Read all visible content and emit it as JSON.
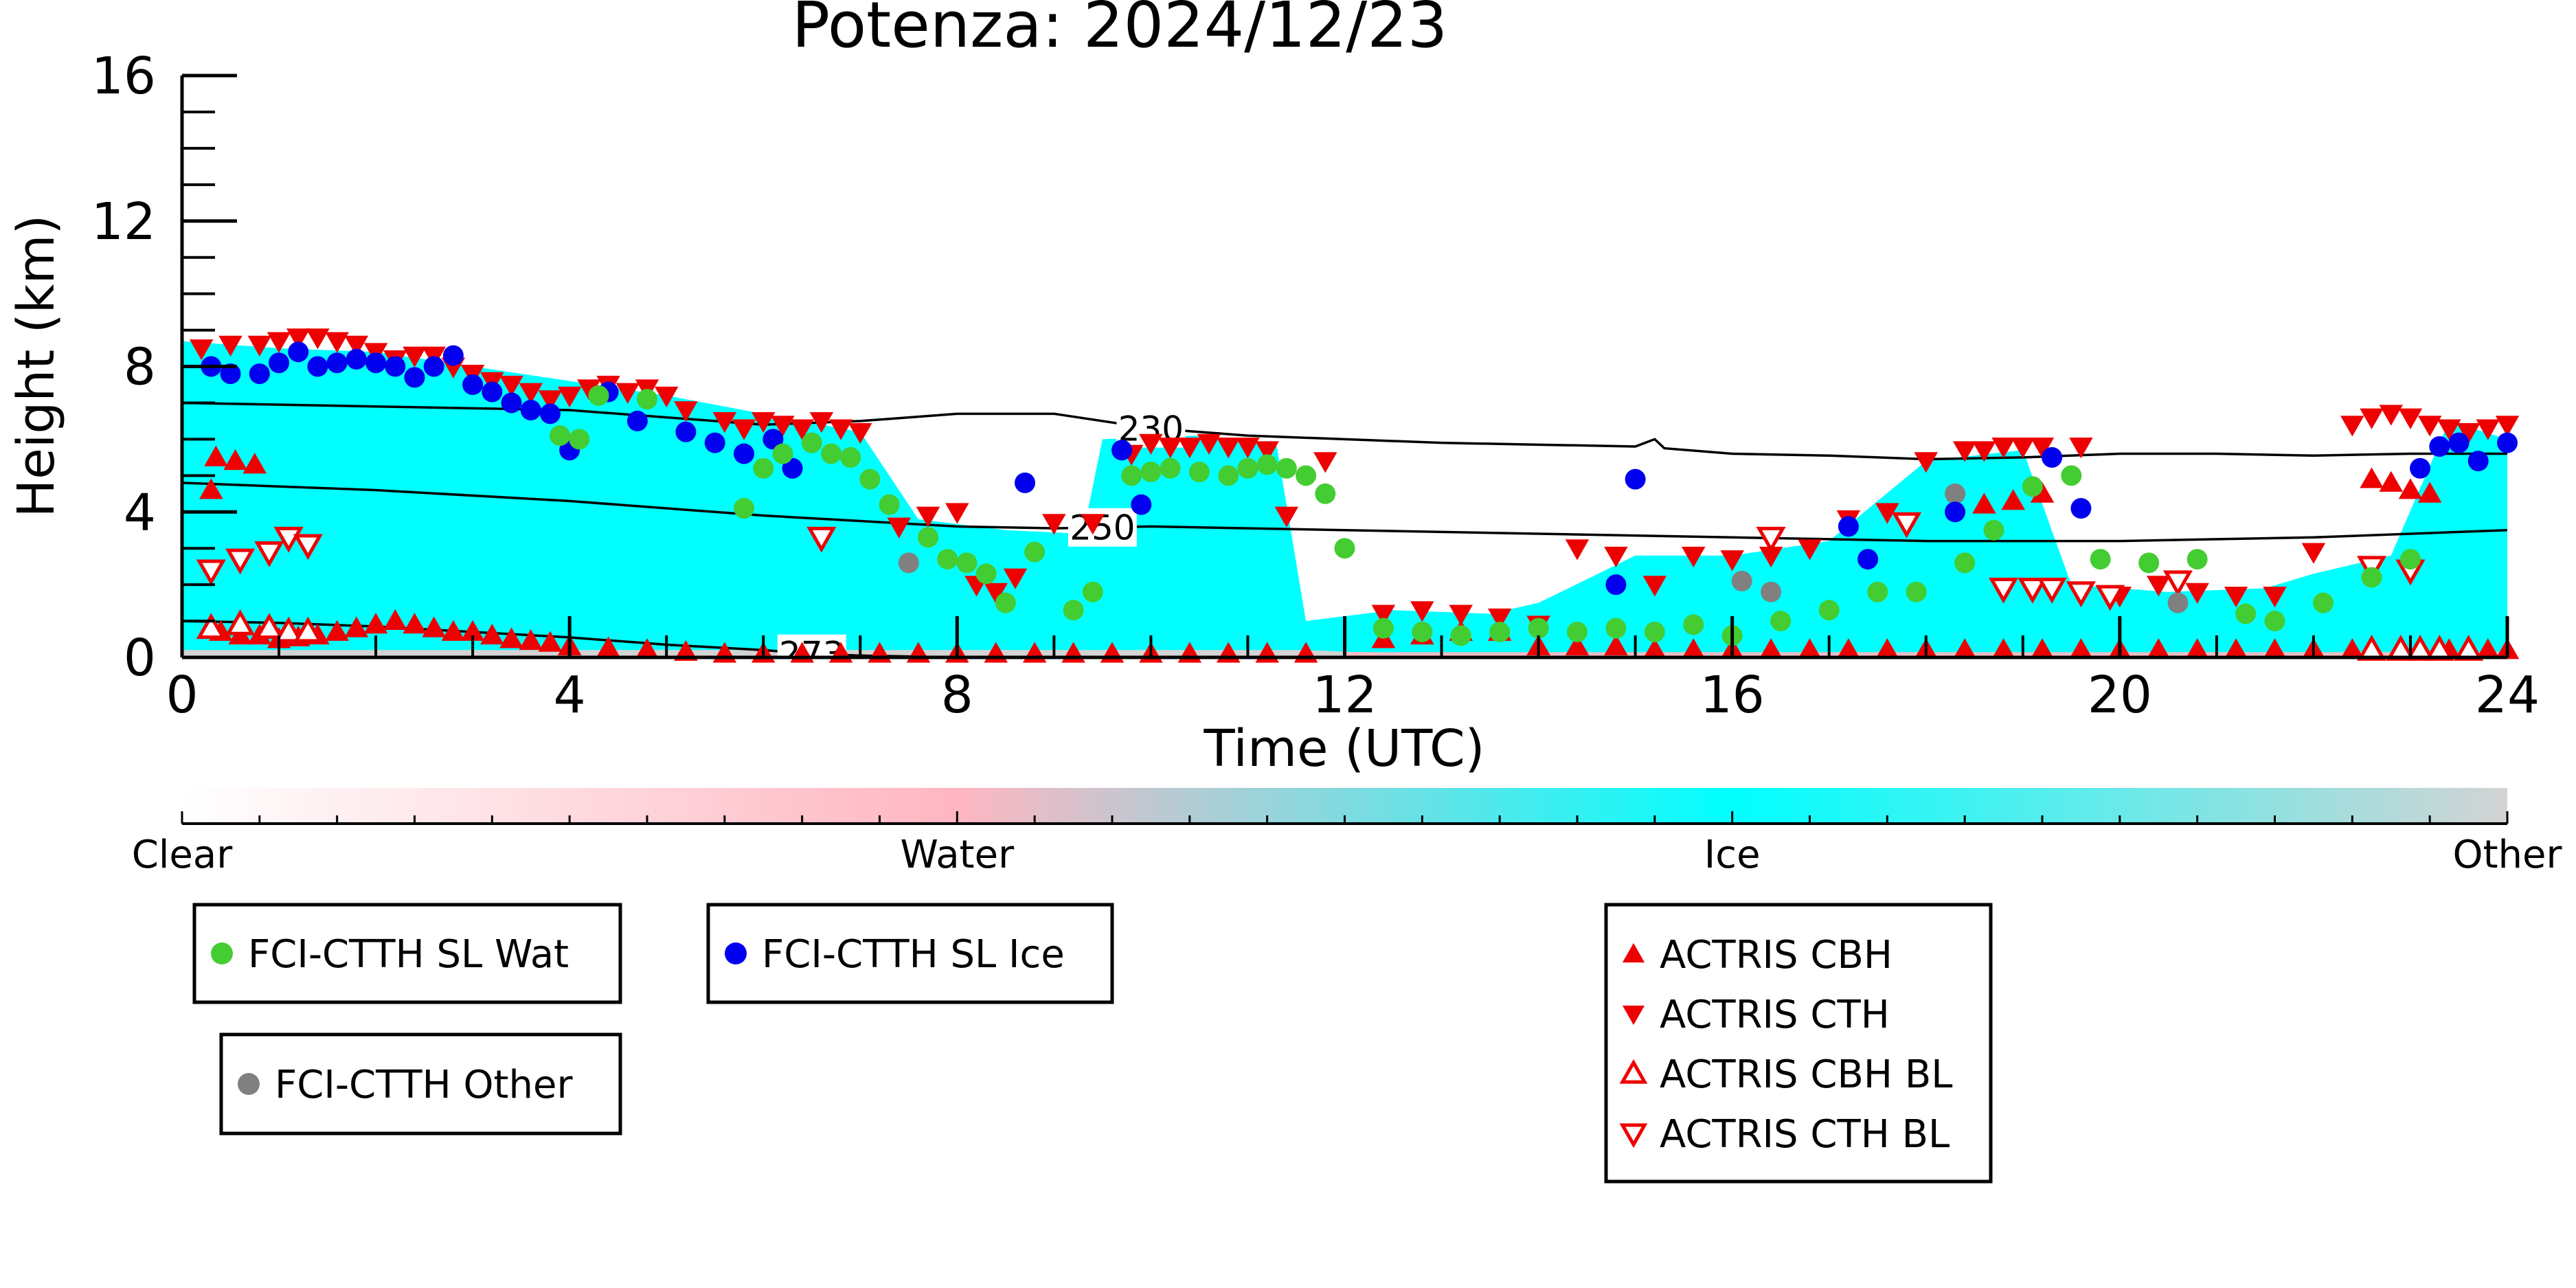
{
  "chart_data": {
    "type": "scatter",
    "title": "Potenza: 2024/12/23",
    "xlabel": "Time (UTC)",
    "ylabel": "Height (km)",
    "xlim": [
      0,
      24
    ],
    "ylim": [
      0,
      16
    ],
    "xticks": [
      0,
      4,
      8,
      12,
      16,
      20,
      24
    ],
    "yticks": [
      0,
      4,
      8,
      12,
      16
    ],
    "xtick_labels": [
      "0",
      "4",
      "8",
      "12",
      "16",
      "20",
      "24"
    ],
    "ytick_labels": [
      "0",
      "4",
      "8",
      "12",
      "16"
    ],
    "background_classes": {
      "labels": [
        "Clear",
        "Water",
        "Ice",
        "Other"
      ],
      "colors": [
        "#ffffff",
        "#ffb6c1",
        "#00ffff",
        "#d3d3d3"
      ],
      "ice_extent": [
        [
          0,
          0.2,
          8.7
        ],
        [
          1,
          0.2,
          8.5
        ],
        [
          2,
          0.2,
          8.4
        ],
        [
          3,
          0.2,
          8.0
        ],
        [
          4,
          0.2,
          7.6
        ],
        [
          5,
          0.2,
          7.2
        ],
        [
          6,
          0.2,
          6.7
        ],
        [
          7,
          0.2,
          6.2
        ],
        [
          7.6,
          0.2,
          3.8
        ],
        [
          8.5,
          0.2,
          3.5
        ],
        [
          9.3,
          0.2,
          3.4
        ],
        [
          9.5,
          0.2,
          6.0
        ],
        [
          10.5,
          0.2,
          6.1
        ],
        [
          11.3,
          0.2,
          5.8
        ],
        [
          11.6,
          0.2,
          1.0
        ],
        [
          12.5,
          0.1,
          1.3
        ],
        [
          13.5,
          0.1,
          1.2
        ],
        [
          14,
          0.1,
          1.5
        ],
        [
          15,
          0.1,
          2.8
        ],
        [
          16,
          0.1,
          2.8
        ],
        [
          17,
          0.1,
          3.2
        ],
        [
          18,
          0.1,
          5.4
        ],
        [
          19,
          0.1,
          5.7
        ],
        [
          19.5,
          0.1,
          2.0
        ],
        [
          20.5,
          0.1,
          1.8
        ],
        [
          21.5,
          0.1,
          1.9
        ],
        [
          22,
          0.1,
          2.3
        ],
        [
          22.8,
          0.1,
          2.8
        ],
        [
          23.4,
          0.1,
          6.5
        ],
        [
          24,
          0.1,
          6.0
        ]
      ]
    },
    "contours": [
      {
        "label": "230",
        "label_x": 10.0,
        "x": [
          0,
          2,
          4,
          6,
          7,
          8,
          9,
          10,
          11,
          12,
          13,
          14,
          15,
          15.2,
          15.3,
          16,
          17,
          18,
          19,
          20,
          21,
          22,
          23,
          24
        ],
        "y": [
          7.0,
          6.9,
          6.8,
          6.4,
          6.5,
          6.7,
          6.7,
          6.3,
          6.1,
          6.0,
          5.9,
          5.85,
          5.8,
          6.0,
          5.75,
          5.6,
          5.55,
          5.45,
          5.5,
          5.6,
          5.6,
          5.55,
          5.6,
          5.6
        ]
      },
      {
        "label": "250",
        "label_x": 9.5,
        "x": [
          0,
          2,
          4,
          6,
          8,
          9,
          10,
          12,
          14,
          16,
          18,
          20,
          22,
          24
        ],
        "y": [
          4.8,
          4.6,
          4.3,
          3.9,
          3.6,
          3.55,
          3.6,
          3.5,
          3.4,
          3.3,
          3.2,
          3.2,
          3.3,
          3.5
        ]
      },
      {
        "label": "273",
        "label_x": 6.5,
        "x": [
          0,
          1,
          2,
          3,
          4,
          5,
          6,
          6.5,
          7,
          8
        ],
        "y": [
          1.0,
          0.95,
          0.85,
          0.7,
          0.55,
          0.35,
          0.2,
          0.1,
          0.05,
          0
        ]
      }
    ],
    "colorbar": {
      "tick_labels": [
        "Clear",
        "Water",
        "Ice",
        "Other"
      ],
      "gradient": [
        "#ffffff",
        "#ffb6c1",
        "#00ffff",
        "#d3d3d3"
      ]
    },
    "series": [
      {
        "name": "FCI-CTTH SL Wat",
        "marker": "circle",
        "color": "#44cc33",
        "x": [
          3.9,
          4.1,
          4.3,
          4.8,
          5.8,
          6.0,
          6.2,
          6.5,
          6.7,
          6.9,
          7.1,
          7.3,
          7.7,
          7.9,
          8.1,
          8.3,
          8.5,
          8.8,
          9.2,
          9.4,
          9.8,
          10.0,
          10.2,
          10.5,
          10.8,
          11.0,
          11.2,
          11.4,
          11.6,
          11.8,
          12.0,
          12.4,
          12.8,
          13.2,
          13.6,
          14.0,
          14.4,
          14.8,
          15.2,
          15.6,
          16.0,
          16.5,
          17.0,
          17.5,
          17.9,
          18.4,
          18.7,
          19.1,
          19.5,
          19.8,
          20.3,
          20.8,
          21.3,
          21.6,
          22.1,
          22.6,
          23.0
        ],
        "y": [
          6.1,
          6.0,
          7.2,
          7.1,
          4.1,
          5.2,
          5.6,
          5.9,
          5.6,
          5.5,
          4.9,
          4.2,
          3.3,
          2.7,
          2.6,
          2.3,
          1.5,
          2.9,
          1.3,
          1.8,
          5.0,
          5.1,
          5.2,
          5.1,
          5.0,
          5.2,
          5.3,
          5.2,
          5.0,
          4.5,
          3.0,
          0.8,
          0.7,
          0.6,
          0.7,
          0.8,
          0.7,
          0.8,
          0.7,
          0.9,
          0.6,
          1.0,
          1.3,
          1.8,
          1.8,
          2.6,
          3.5,
          4.7,
          5.0,
          2.7,
          2.6,
          2.7,
          1.2,
          1.0,
          1.5,
          2.2,
          2.7
        ]
      },
      {
        "name": "FCI-CTTH SL Ice",
        "marker": "circle",
        "color": "#0000ee",
        "x": [
          0.3,
          0.5,
          0.8,
          1.0,
          1.2,
          1.4,
          1.6,
          1.8,
          2.0,
          2.2,
          2.4,
          2.6,
          2.8,
          3.0,
          3.2,
          3.4,
          3.6,
          3.8,
          4.0,
          4.4,
          4.7,
          5.2,
          5.5,
          5.8,
          6.1,
          6.3,
          8.7,
          9.7,
          9.9,
          14.8,
          15.0,
          17.2,
          17.4,
          18.3,
          19.3,
          19.6,
          23.1,
          23.3,
          23.5,
          23.7,
          24.0
        ],
        "y": [
          8.0,
          7.8,
          7.8,
          8.1,
          8.4,
          8.0,
          8.1,
          8.2,
          8.1,
          8.0,
          7.7,
          8.0,
          8.3,
          7.5,
          7.3,
          7.0,
          6.8,
          6.7,
          5.7,
          7.3,
          6.5,
          6.2,
          5.9,
          5.6,
          6.0,
          5.2,
          4.8,
          5.7,
          4.2,
          2.0,
          4.9,
          3.6,
          2.7,
          4.0,
          5.5,
          4.1,
          5.2,
          5.8,
          5.9,
          5.4,
          5.9
        ]
      },
      {
        "name": "FCI-CTTH Other",
        "marker": "circle",
        "color": "#808080",
        "x": [
          7.5,
          16.1,
          16.4,
          18.3,
          20.6
        ],
        "y": [
          2.6,
          2.1,
          1.8,
          4.5,
          1.5
        ]
      },
      {
        "name": "ACTRIS CBH",
        "marker": "triangle-up",
        "color": "#ee0000",
        "x": [
          0.3,
          0.4,
          0.6,
          0.8,
          1.0,
          1.2,
          1.4,
          1.6,
          1.8,
          2.0,
          2.2,
          2.4,
          2.6,
          2.8,
          3.0,
          3.2,
          3.4,
          3.6,
          3.8,
          4.0,
          4.4,
          4.8,
          5.2,
          5.6,
          6.0,
          6.4,
          6.8,
          7.2,
          7.6,
          8.0,
          8.4,
          8.8,
          9.2,
          9.6,
          10.0,
          10.4,
          10.8,
          11.2,
          11.6,
          12.4,
          12.8,
          13.2,
          13.6,
          14.0,
          14.4,
          14.8,
          15.2,
          15.6,
          16.0,
          16.4,
          16.8,
          17.2,
          17.6,
          18.0,
          18.4,
          18.8,
          19.2,
          19.6,
          20.0,
          20.4,
          20.8,
          21.2,
          21.6,
          22.0,
          22.4,
          22.6,
          22.8,
          23.0,
          23.2,
          23.4,
          23.6,
          23.8,
          24.0,
          18.6,
          18.9,
          19.2,
          0.35,
          0.55,
          0.75
        ],
        "y": [
          4.6,
          0.7,
          0.6,
          0.6,
          0.5,
          0.55,
          0.6,
          0.7,
          0.8,
          0.9,
          1.0,
          0.9,
          0.8,
          0.7,
          0.7,
          0.6,
          0.5,
          0.45,
          0.4,
          0.3,
          0.25,
          0.2,
          0.15,
          0.1,
          0.1,
          0.1,
          0.1,
          0.1,
          0.1,
          0.1,
          0.1,
          0.1,
          0.1,
          0.1,
          0.1,
          0.1,
          0.1,
          0.1,
          0.1,
          0.5,
          0.6,
          0.7,
          0.7,
          0.3,
          0.3,
          0.3,
          0.2,
          0.2,
          0.2,
          0.2,
          0.2,
          0.2,
          0.2,
          0.2,
          0.2,
          0.2,
          0.2,
          0.2,
          0.2,
          0.2,
          0.2,
          0.2,
          0.2,
          0.2,
          0.2,
          4.9,
          4.8,
          4.6,
          4.5,
          0.2,
          0.2,
          0.2,
          0.2,
          4.2,
          4.3,
          4.5,
          5.5,
          5.4,
          5.3
        ]
      },
      {
        "name": "ACTRIS CTH",
        "marker": "triangle-down",
        "color": "#ee0000",
        "x": [
          0.2,
          0.5,
          0.8,
          1.0,
          1.2,
          1.4,
          1.6,
          1.8,
          2.0,
          2.2,
          2.4,
          2.6,
          2.8,
          3.0,
          3.2,
          3.4,
          3.6,
          3.8,
          4.0,
          4.2,
          4.4,
          4.6,
          4.8,
          5.0,
          5.2,
          5.6,
          5.8,
          6.0,
          6.2,
          6.4,
          6.6,
          6.8,
          7.0,
          7.4,
          7.7,
          8.0,
          8.2,
          8.4,
          8.6,
          9.0,
          9.4,
          9.8,
          10.0,
          10.2,
          10.4,
          10.6,
          10.8,
          11.0,
          11.2,
          11.4,
          11.8,
          12.4,
          12.8,
          13.2,
          13.6,
          14.0,
          14.4,
          14.8,
          15.2,
          15.6,
          16.0,
          16.4,
          16.8,
          17.2,
          17.6,
          18.0,
          18.4,
          18.6,
          18.8,
          19.0,
          19.2,
          19.6,
          20.0,
          20.4,
          20.8,
          21.2,
          21.6,
          22.0,
          22.4,
          22.6,
          22.8,
          23.0,
          23.2,
          23.4,
          23.6,
          23.8,
          24.0
        ],
        "y": [
          8.5,
          8.6,
          8.6,
          8.7,
          8.8,
          8.8,
          8.7,
          8.6,
          8.4,
          8.2,
          8.3,
          8.3,
          8.0,
          7.8,
          7.6,
          7.5,
          7.3,
          7.1,
          7.2,
          7.4,
          7.5,
          7.3,
          7.4,
          7.2,
          6.8,
          6.5,
          6.3,
          6.5,
          6.4,
          6.3,
          6.5,
          6.3,
          6.2,
          3.6,
          3.9,
          4.0,
          2.0,
          1.8,
          2.2,
          3.7,
          3.7,
          5.6,
          5.9,
          5.8,
          5.8,
          5.9,
          5.8,
          5.8,
          5.7,
          3.9,
          5.4,
          1.2,
          1.3,
          1.2,
          1.1,
          0.9,
          3.0,
          2.8,
          2.0,
          2.8,
          2.7,
          2.8,
          3.0,
          3.8,
          4.0,
          5.4,
          5.7,
          5.7,
          5.8,
          5.8,
          5.8,
          5.8,
          1.7,
          2.0,
          1.8,
          1.7,
          1.7,
          2.9,
          6.4,
          6.6,
          6.7,
          6.6,
          6.4,
          6.3,
          6.2,
          6.3,
          6.4
        ]
      },
      {
        "name": "ACTRIS CBH BL",
        "marker": "triangle-up-open",
        "color": "#ee0000",
        "x": [
          0.3,
          0.6,
          0.9,
          1.1,
          1.3,
          22.6,
          22.9,
          23.1,
          23.3,
          23.6
        ],
        "y": [
          0.8,
          0.9,
          0.8,
          0.7,
          0.7,
          0.2,
          0.2,
          0.2,
          0.2,
          0.2
        ]
      },
      {
        "name": "ACTRIS CTH BL",
        "marker": "triangle-down-open",
        "color": "#ee0000",
        "x": [
          0.3,
          0.6,
          0.9,
          1.1,
          1.3,
          6.6,
          16.4,
          17.8,
          18.8,
          19.1,
          19.3,
          19.6,
          19.9,
          20.6,
          22.6,
          23.0
        ],
        "y": [
          2.4,
          2.7,
          2.9,
          3.3,
          3.1,
          3.3,
          3.3,
          3.7,
          1.9,
          1.9,
          1.9,
          1.8,
          1.7,
          2.1,
          2.5,
          2.4
        ]
      }
    ]
  },
  "legends": [
    {
      "entries": [
        {
          "label": "FCI-CTTH SL Wat",
          "series": 0
        }
      ]
    },
    {
      "entries": [
        {
          "label": "FCI-CTTH SL Ice",
          "series": 1
        }
      ]
    },
    {
      "entries": [
        {
          "label": "FCI-CTTH Other",
          "series": 2
        }
      ]
    },
    {
      "entries": [
        {
          "label": "ACTRIS CBH",
          "series": 3
        },
        {
          "label": "ACTRIS CTH",
          "series": 4
        },
        {
          "label": "ACTRIS CBH BL",
          "series": 5
        },
        {
          "label": "ACTRIS CTH BL",
          "series": 6
        }
      ]
    }
  ]
}
